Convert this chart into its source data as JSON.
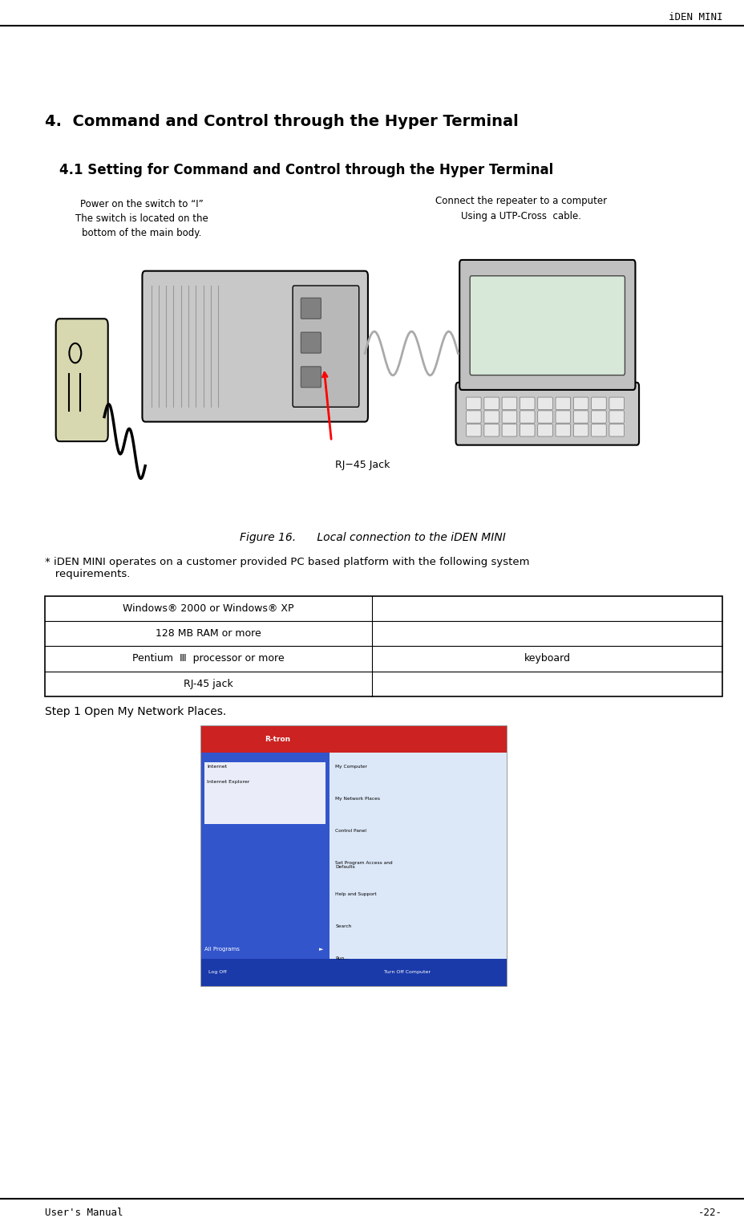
{
  "page_width": 9.29,
  "page_height": 15.28,
  "bg_color": "#ffffff",
  "header_text": "iDEN MINI",
  "footer_left": "User's Manual",
  "footer_right": "-22-",
  "section_title": "4.  Command and Control through the Hyper Terminal",
  "subsection_title": "4.1 Setting for Command and Control through the Hyper Terminal",
  "figure_caption": "Figure 16.      Local connection to the iDEN MINI",
  "note_text": "* iDEN MINI operates on a customer provided PC based platform with the following system\n   requirements.",
  "table_rows": [
    [
      "Windows® 2000 or Windows® XP",
      ""
    ],
    [
      "128 MB RAM or more",
      ""
    ],
    [
      "Pentium  Ⅲ  processor or more",
      "keyboard"
    ],
    [
      "RJ-45 jack",
      ""
    ]
  ],
  "step_text": "Step 1 Open My Network Places.",
  "annotation_left_line1": "Power on the switch to “I”",
  "annotation_left_line2": "The switch is located on the",
  "annotation_left_line3": "bottom of the main body.",
  "annotation_right_line1": "Connect the repeater to a computer",
  "annotation_right_line2": "Using a UTP-Cross  cable.",
  "rj45_label": "RJ−45 Jack"
}
